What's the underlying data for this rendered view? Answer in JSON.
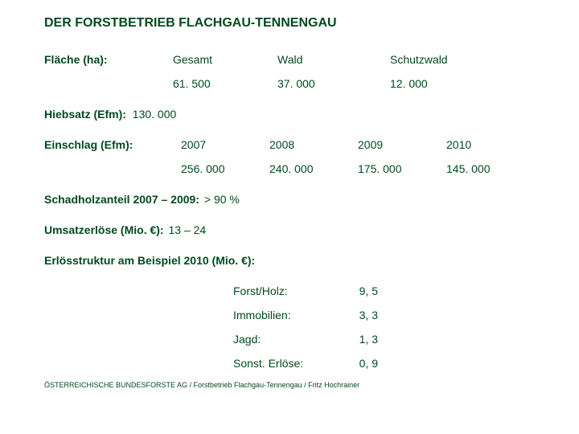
{
  "title": "DER FORSTBETRIEB FLACHGAU-TENNENGAU",
  "flaeche": {
    "label": "Fläche (ha):",
    "headers": [
      "Gesamt",
      "Wald",
      "Schutzwald"
    ],
    "values": [
      "61. 500",
      "37. 000",
      "12. 000"
    ]
  },
  "hiebsatz": {
    "label": "Hiebsatz (Efm):",
    "value": "130. 000"
  },
  "einschlag": {
    "label": "Einschlag (Efm):",
    "years": [
      "2007",
      "2008",
      "2009",
      "2010"
    ],
    "values": [
      "256. 000",
      "240. 000",
      "175. 000",
      "145. 000"
    ]
  },
  "schadholz": {
    "label": "Schadholzanteil 2007 – 2009:",
    "value": "> 90 %"
  },
  "umsatz": {
    "label": "Umsatzerlöse (Mio. €):",
    "value": "13 – 24"
  },
  "erloesstruktur": {
    "heading": "Erlösstruktur am Beispiel 2010 (Mio. €):",
    "rows": [
      {
        "label": "Forst/Holz:",
        "value": "9, 5"
      },
      {
        "label": "Immobilien:",
        "value": "3, 3"
      },
      {
        "label": "Jagd:",
        "value": "1, 3"
      },
      {
        "label": "Sonst. Erlöse:",
        "value": "0, 9"
      }
    ]
  },
  "footer": "ÖSTERREICHISCHE BUNDESFORSTE AG / Forstbetrieb Flachgau-Tennengau / Fritz Hochrainer"
}
